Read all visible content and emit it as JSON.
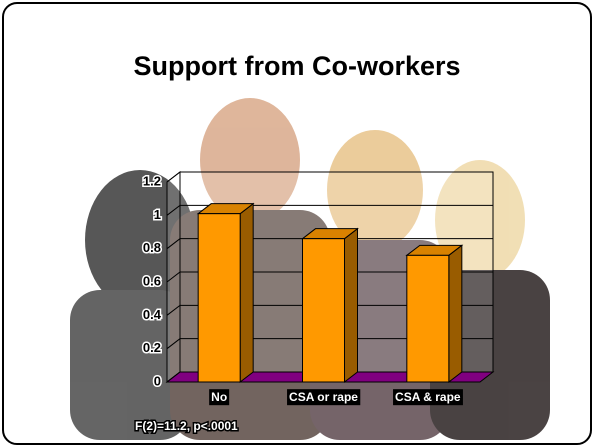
{
  "chart_data": {
    "type": "bar3d",
    "title": "Support from Co-workers",
    "categories": [
      "No",
      "CSA or rape",
      "CSA & rape"
    ],
    "values": [
      1.01,
      0.86,
      0.76
    ],
    "color": "#ff9900",
    "ylim": [
      0,
      1.2
    ],
    "yticks": [
      0,
      0.2,
      0.4,
      0.6,
      0.8,
      1,
      1.2
    ],
    "grid": true,
    "annotation": "F(2)=11.2, p<.0001"
  }
}
